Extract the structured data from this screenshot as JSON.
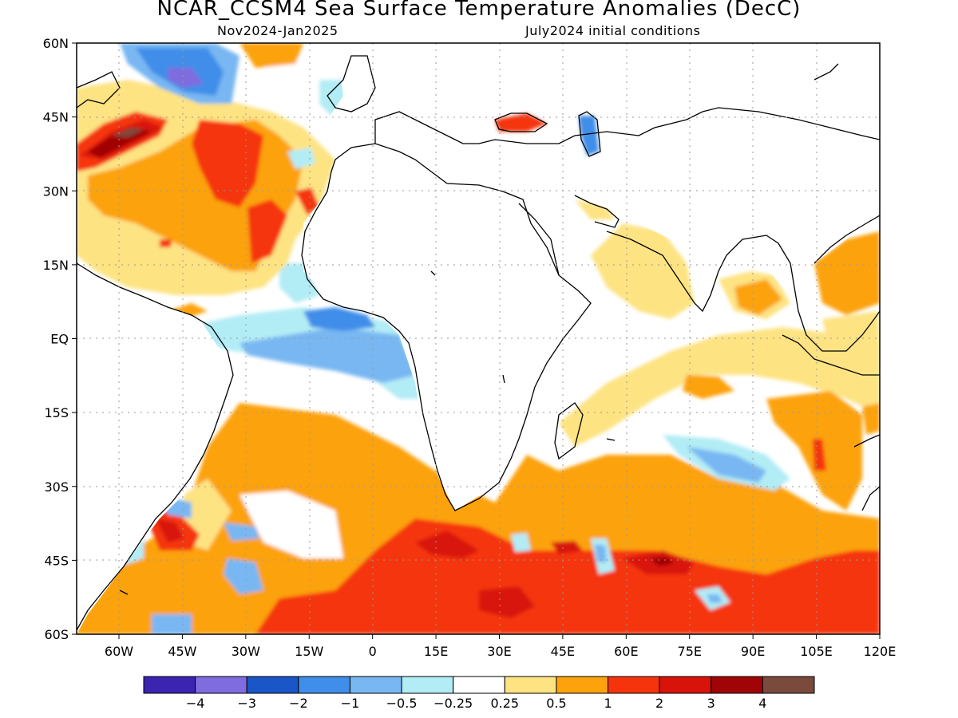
{
  "title": "NCAR_CCSM4 Sea Surface Temperature Anomalies (DecC)",
  "subtitle_left": "Nov2024-Jan2025",
  "subtitle_right": "July2024 initial conditions",
  "lat_labels": [
    "60N",
    "45N",
    "30N",
    "15N",
    "EQ",
    "15S",
    "30S",
    "45S",
    "60S"
  ],
  "lon_labels": [
    "60W",
    "45W",
    "30W",
    "15W",
    "0",
    "15E",
    "30E",
    "45E",
    "60E",
    "75E",
    "90E",
    "105E",
    "120E"
  ],
  "colorbar": {
    "colors": [
      "#3a24b0",
      "#7f6cdf",
      "#1a56c8",
      "#3f8ee9",
      "#78b7f2",
      "#b2ecf5",
      "#ffffff",
      "#fde382",
      "#fca20c",
      "#f5340e",
      "#d8140a",
      "#a10406",
      "#7a4a3c"
    ],
    "labels": [
      "-4",
      "-3",
      "-2",
      "-1",
      "-0.5",
      "-0.25",
      "0.25",
      "0.5",
      "1",
      "2",
      "3",
      "4"
    ]
  },
  "colors": {
    "land": "#ffffff",
    "ocean_default": "#ffffff",
    "coastline": "#000000",
    "grid": "#999999"
  }
}
